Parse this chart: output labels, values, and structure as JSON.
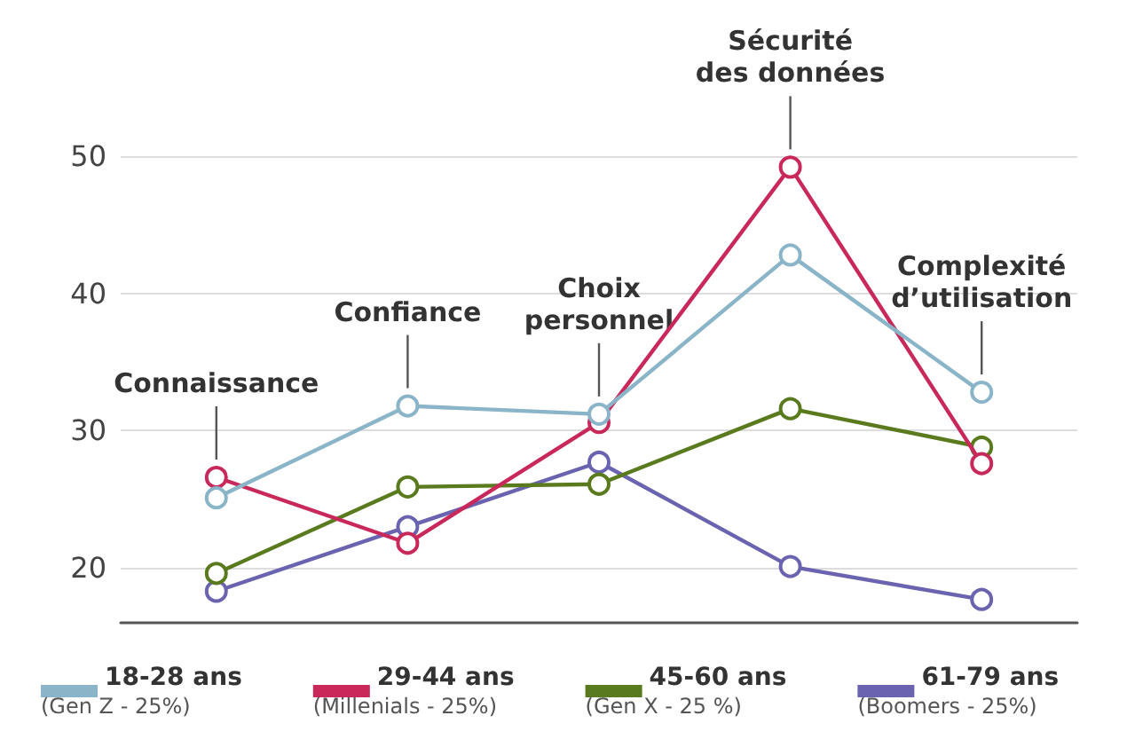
{
  "chart_data": {
    "type": "line",
    "categories": [
      null,
      null,
      null,
      null,
      null
    ],
    "series": [
      {
        "name": "18-28 ans (Gen Z - 25%)",
        "color": "#8ab4c8",
        "values": [
          25.1,
          31.8,
          31.2,
          42.8,
          32.8
        ]
      },
      {
        "name": "29-44 ans (Millenials - 25%)",
        "color": "#c8285a",
        "values": [
          26.6,
          21.8,
          30.6,
          49.2,
          27.6
        ]
      },
      {
        "name": "45-60 ans (Gen X - 25 %)",
        "color": "#5a7a1e",
        "values": [
          19.6,
          25.9,
          26.1,
          31.6,
          28.8
        ]
      },
      {
        "name": "61-79 ans (Boomers - 25%)",
        "color": "#6a64b0",
        "values": [
          18.3,
          23.0,
          27.7,
          20.1,
          17.7
        ]
      }
    ],
    "annotations": [
      "Connaissance",
      "Confiance",
      "Choix\npersonnel",
      "Sécurité\ndes données",
      "Complexité\nd’utilisation"
    ],
    "ylim": [
      16,
      50
    ],
    "yticks": [
      20,
      30,
      40,
      50
    ],
    "grid": "y",
    "legend": "bottom",
    "marker": "circle",
    "line_style": "solid"
  }
}
